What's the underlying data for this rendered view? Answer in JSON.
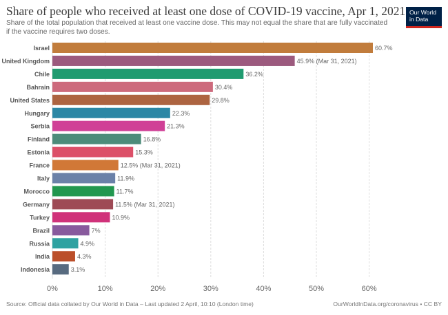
{
  "header": {
    "title": "Share of people who received at least one dose of COVID-19 vaccine, Apr 1, 2021",
    "subtitle": "Share of the total population that received at least one vaccine dose. This may not equal the share that are fully vaccinated if the vaccine requires two doses."
  },
  "logo": {
    "line1": "Our World",
    "line2": "in Data"
  },
  "footer": {
    "source": "Source: Official data collated by Our World in Data – Last updated 2 April, 10:10 (London time)",
    "license": "OurWorldInData.org/coronavirus • CC BY"
  },
  "chart_data": {
    "type": "bar",
    "orientation": "horizontal",
    "categories": [
      "Israel",
      "United Kingdom",
      "Chile",
      "Bahrain",
      "United States",
      "Hungary",
      "Serbia",
      "Finland",
      "Estonia",
      "France",
      "Italy",
      "Morocco",
      "Germany",
      "Turkey",
      "Brazil",
      "Russia",
      "India",
      "Indonesia"
    ],
    "values": [
      60.7,
      45.9,
      36.2,
      30.4,
      29.8,
      22.3,
      21.3,
      16.8,
      15.3,
      12.5,
      11.9,
      11.7,
      11.5,
      10.9,
      7,
      4.9,
      4.3,
      3.1
    ],
    "labels": [
      "60.7%",
      "45.9% (Mar 31, 2021)",
      "36.2%",
      "30.4%",
      "29.8%",
      "22.3%",
      "21.3%",
      "16.8%",
      "15.3%",
      "12.5% (Mar 31, 2021)",
      "11.9%",
      "11.7%",
      "11.5% (Mar 31, 2021)",
      "10.9%",
      "7%",
      "4.9%",
      "4.3%",
      "3.1%"
    ],
    "colors": [
      "#c17c3c",
      "#9c5a7e",
      "#209b70",
      "#cd6a7c",
      "#ad6441",
      "#2b87a5",
      "#d04096",
      "#4d8c7a",
      "#dc5068",
      "#d17837",
      "#6b81a8",
      "#22974f",
      "#9e4a55",
      "#d0327a",
      "#885a9d",
      "#2fa2a1",
      "#bb4f2a",
      "#586b80"
    ],
    "xticks": [
      0,
      10,
      20,
      30,
      40,
      50,
      60
    ],
    "xtick_labels": [
      "0%",
      "10%",
      "20%",
      "30%",
      "40%",
      "50%",
      "60%"
    ],
    "xlim": [
      0,
      62
    ],
    "grid": true
  }
}
